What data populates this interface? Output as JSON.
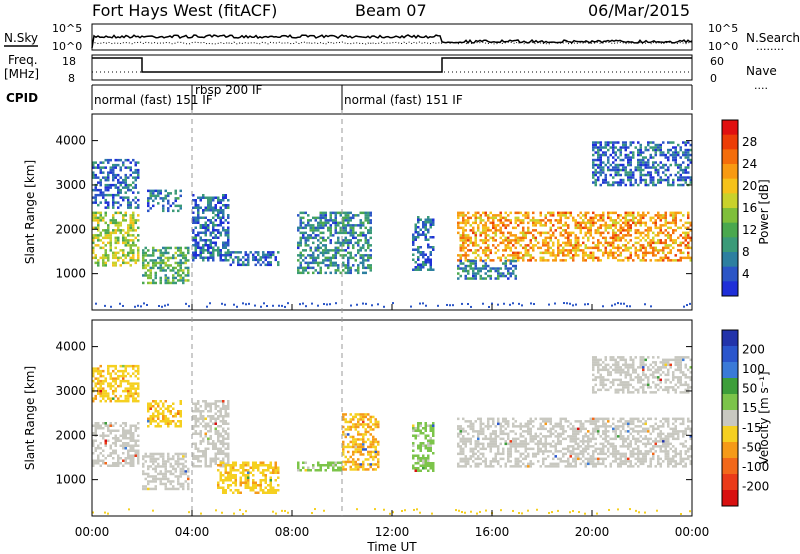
{
  "header": {
    "title": "Fort Hays West (fitACF)",
    "beam": "Beam 07",
    "date": "06/Mar/2015"
  },
  "panels": {
    "nsky_label": "N.Sky",
    "nsearch_label": "N.Search",
    "nsearch_marker": "........",
    "freq_label": "Freq.",
    "freq_unit": "[MHz]",
    "nave_label": "Nave",
    "nave_marker": "....",
    "cpid_label": "CPID",
    "noise_ticks_left": [
      "10^5",
      "10^0"
    ],
    "noise_ticks_right": [
      "10^5",
      "10^0"
    ],
    "freq_ticks_left": [
      "18",
      "8"
    ],
    "nave_ticks_right": [
      "60",
      "0"
    ],
    "cpid_segments": [
      {
        "text": "normal (fast) 151 IF",
        "start_hr": 0
      },
      {
        "text": "rbsp 200 IF",
        "start_hr": 4
      },
      {
        "text": "normal (fast) 151 IF",
        "start_hr": 10
      }
    ]
  },
  "axes": {
    "ylabel": "Slant Range [km]",
    "xlabel": "Time UT",
    "y_ticks": [
      "1000",
      "2000",
      "3000",
      "4000"
    ],
    "x_ticks": [
      "00:00",
      "04:00",
      "08:00",
      "12:00",
      "16:00",
      "20:00",
      "00:00"
    ]
  },
  "colorbars": {
    "power": {
      "label": "Power [dB]",
      "ticks": [
        "4",
        "8",
        "12",
        "16",
        "20",
        "24",
        "28"
      ],
      "colors": [
        "#1f2fd8",
        "#2b55c6",
        "#2d7fa0",
        "#3a9a78",
        "#4aa84e",
        "#7fbf3a",
        "#c9d22c",
        "#f5c21b",
        "#f89a12",
        "#f46d0b",
        "#ec3d07",
        "#e01010"
      ]
    },
    "velocity": {
      "label": "Velocity [m s⁻¹]",
      "ticks": [
        "200",
        "100",
        "50",
        "15",
        "-15",
        "-50",
        "-100",
        "-200"
      ],
      "colors": [
        "#2233aa",
        "#2a55cc",
        "#3a7ad8",
        "#3d9e3a",
        "#7cc44a",
        "#c8c8c0",
        "#f5d020",
        "#f59a18",
        "#f2681a",
        "#ea3a18",
        "#d81010"
      ]
    }
  },
  "chart_data": {
    "type": "heatmap",
    "x_range_hours": [
      0,
      24
    ],
    "y_range_km": [
      180,
      4600
    ],
    "frequency_mhz": [
      {
        "start_hr": 0,
        "end_hr": 2,
        "value": 18
      },
      {
        "start_hr": 2,
        "end_hr": 14,
        "value": 8
      },
      {
        "start_hr": 14,
        "end_hr": 24,
        "value": 18
      }
    ],
    "echo_regions_power": [
      {
        "t0": 0,
        "t1": 1.9,
        "r0": 1150,
        "r1": 2400,
        "db": 16
      },
      {
        "t0": 0,
        "t1": 1.9,
        "r0": 2500,
        "r1": 3600,
        "db": 6
      },
      {
        "t0": 2,
        "t1": 3.9,
        "r0": 800,
        "r1": 1600,
        "db": 12
      },
      {
        "t0": 2.2,
        "t1": 3.6,
        "r0": 2400,
        "r1": 2900,
        "db": 6
      },
      {
        "t0": 4,
        "t1": 5.5,
        "r0": 1300,
        "r1": 2800,
        "db": 6
      },
      {
        "t0": 5.5,
        "t1": 7.5,
        "r0": 1200,
        "r1": 1500,
        "db": 6
      },
      {
        "t0": 8.2,
        "t1": 11.2,
        "r0": 1000,
        "r1": 2400,
        "db": 8
      },
      {
        "t0": 12.8,
        "t1": 13.7,
        "r0": 1100,
        "r1": 2300,
        "db": 6
      },
      {
        "t0": 14.6,
        "t1": 24,
        "r0": 1300,
        "r1": 2400,
        "db": 22
      },
      {
        "t0": 14.6,
        "t1": 17,
        "r0": 900,
        "r1": 1300,
        "db": 8
      },
      {
        "t0": 20,
        "t1": 24,
        "r0": 3000,
        "r1": 4000,
        "db": 6
      }
    ],
    "echo_regions_velocity": [
      {
        "t0": 0,
        "t1": 1.9,
        "r0": 1300,
        "r1": 2300,
        "v": 0
      },
      {
        "t0": 0,
        "t1": 1.9,
        "r0": 2800,
        "r1": 3600,
        "v": -50
      },
      {
        "t0": 2,
        "t1": 3.9,
        "r0": 800,
        "r1": 1600,
        "v": 0
      },
      {
        "t0": 2.2,
        "t1": 3.6,
        "r0": 2200,
        "r1": 2800,
        "v": -50
      },
      {
        "t0": 4,
        "t1": 5.5,
        "r0": 1300,
        "r1": 2800,
        "v": 0
      },
      {
        "t0": 5,
        "t1": 7.5,
        "r0": 700,
        "r1": 1400,
        "v": -50
      },
      {
        "t0": 8.2,
        "t1": 10,
        "r0": 1200,
        "r1": 1400,
        "v": 30
      },
      {
        "t0": 10,
        "t1": 11.5,
        "r0": 1200,
        "r1": 2500,
        "v": -60
      },
      {
        "t0": 12.8,
        "t1": 13.7,
        "r0": 1200,
        "r1": 2300,
        "v": 30
      },
      {
        "t0": 14.6,
        "t1": 24,
        "r0": 1300,
        "r1": 2400,
        "v": 0
      },
      {
        "t0": 20,
        "t1": 24,
        "r0": 3000,
        "r1": 3800,
        "v": 0
      }
    ]
  }
}
